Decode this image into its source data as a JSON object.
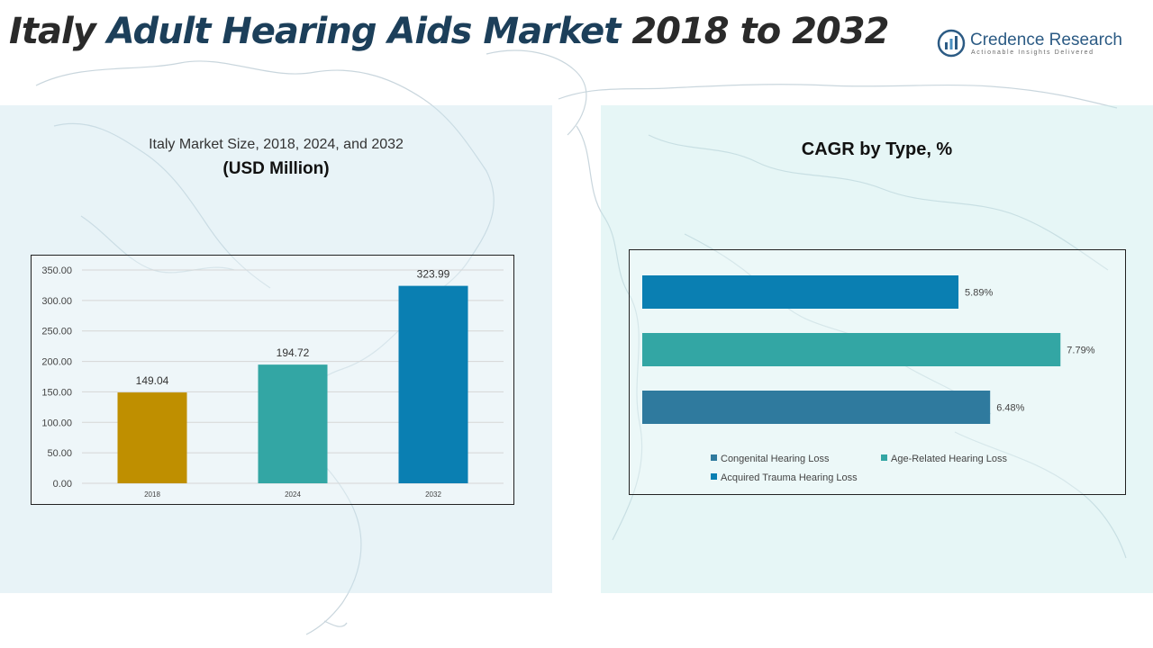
{
  "page": {
    "title_part1": "Italy",
    "title_part2": "Adult Hearing Aids Market",
    "title_part3": "2018 to 2032"
  },
  "logo": {
    "name": "Credence Research",
    "tagline": "Actionable Insights Delivered"
  },
  "left_panel": {
    "title": "Italy Market Size, 2018, 2024, and 2032",
    "subtitle": "(USD Million)"
  },
  "right_panel": {
    "title": "CAGR by Type, %"
  },
  "chart_data": [
    {
      "type": "bar",
      "orientation": "vertical",
      "title": "Italy Market Size, 2018, 2024, and 2032",
      "ylabel": "(USD Million)",
      "categories": [
        "2018",
        "2024",
        "2032"
      ],
      "values": [
        149.04,
        194.72,
        323.99
      ],
      "value_labels": [
        "149.04",
        "194.72",
        "323.99"
      ],
      "colors": [
        "#bf8f00",
        "#33a6a4",
        "#0a7fb2"
      ],
      "ylim": [
        0,
        350
      ],
      "yticks": [
        "0.00",
        "50.00",
        "100.00",
        "150.00",
        "200.00",
        "250.00",
        "300.00",
        "350.00"
      ],
      "grid": true
    },
    {
      "type": "bar",
      "orientation": "horizontal",
      "title": "CAGR by Type, %",
      "categories": [
        "Acquired Trauma Hearing Loss",
        "Age-Related Hearing Loss",
        "Congenital Hearing Loss"
      ],
      "values": [
        5.89,
        7.79,
        6.48
      ],
      "value_labels": [
        "5.89%",
        "7.79%",
        "6.48%"
      ],
      "colors": [
        "#0a7fb2",
        "#33a6a4",
        "#2f7a9e"
      ],
      "legend": {
        "placement": "bottom",
        "items": [
          {
            "label": "Congenital Hearing Loss",
            "color": "#2f7a9e"
          },
          {
            "label": "Age-Related Hearing Loss",
            "color": "#33a6a4"
          },
          {
            "label": "Acquired Trauma Hearing Loss",
            "color": "#0a7fb2"
          }
        ]
      },
      "grid": false
    }
  ]
}
